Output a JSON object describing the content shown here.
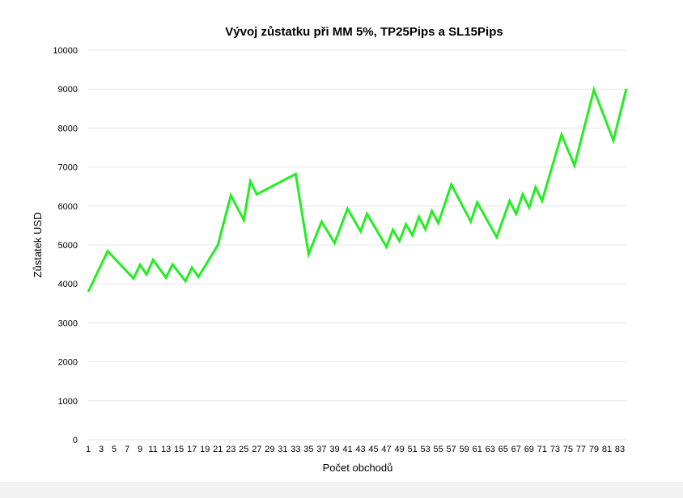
{
  "chart_data": {
    "type": "line",
    "title": "Vývoj zůstatku při MM 5%, TP25Pips a SL15Pips",
    "xlabel": "Počet obchodů",
    "ylabel": "Zůstatek USD",
    "ylim": [
      0,
      10000
    ],
    "yticks": [
      0,
      1000,
      2000,
      3000,
      4000,
      5000,
      6000,
      7000,
      8000,
      9000,
      10000
    ],
    "xticks": [
      1,
      3,
      5,
      7,
      9,
      11,
      13,
      15,
      17,
      19,
      21,
      23,
      25,
      27,
      29,
      31,
      33,
      35,
      37,
      39,
      41,
      43,
      45,
      47,
      49,
      51,
      53,
      55,
      57,
      59,
      61,
      63,
      65,
      67,
      69,
      71,
      73,
      75,
      77,
      79,
      81,
      83
    ],
    "xlim": [
      1,
      84
    ],
    "grid": true,
    "legend": "none",
    "series": [
      {
        "color": "#22ee22",
        "x": [
          1,
          4,
          8,
          9,
          10,
          11,
          13,
          14,
          16,
          17,
          18,
          21,
          23,
          25,
          26,
          27,
          33,
          35,
          37,
          39,
          41,
          43,
          44,
          47,
          48,
          49,
          50,
          51,
          52,
          53,
          54,
          55,
          57,
          60,
          61,
          64,
          66,
          67,
          68,
          69,
          70,
          71,
          74,
          76,
          79,
          82,
          84
        ],
        "y": [
          3800,
          4840,
          4140,
          4490,
          4240,
          4620,
          4160,
          4500,
          4070,
          4420,
          4180,
          5000,
          6270,
          5640,
          6630,
          6300,
          6820,
          4760,
          5600,
          5050,
          5930,
          5350,
          5800,
          4950,
          5390,
          5100,
          5530,
          5250,
          5720,
          5400,
          5870,
          5560,
          6550,
          5600,
          6090,
          5200,
          6130,
          5800,
          6300,
          5960,
          6480,
          6130,
          7830,
          7040,
          8980,
          7680,
          9010
        ]
      }
    ]
  }
}
